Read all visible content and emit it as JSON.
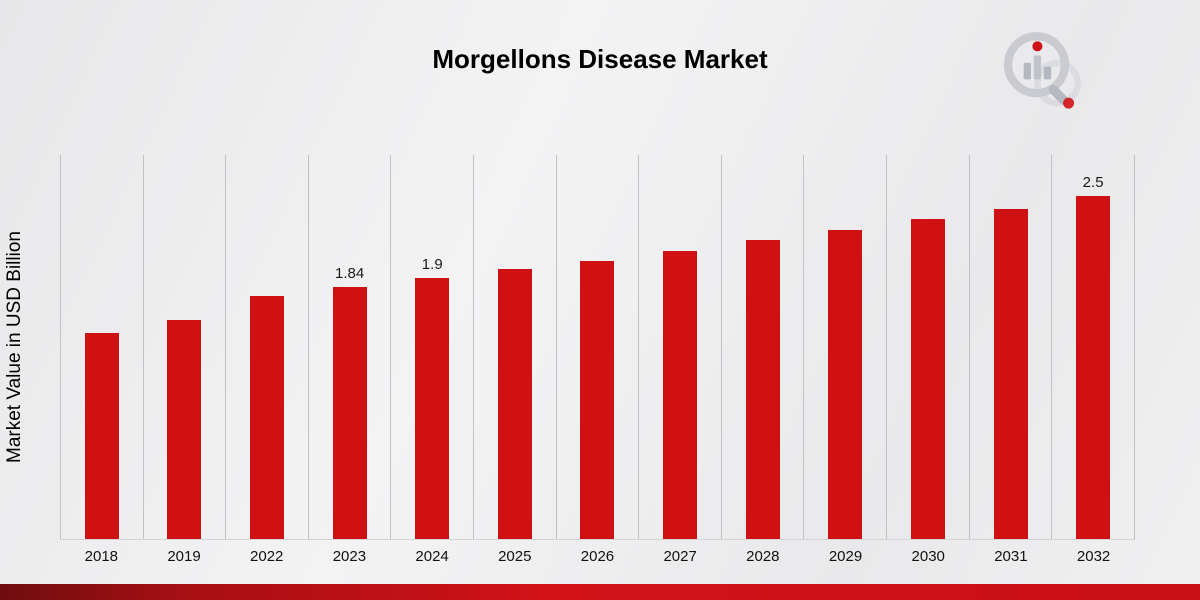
{
  "page": {
    "title": "Morgellons Disease Market"
  },
  "chart_data": {
    "type": "bar",
    "title": "Morgellons Disease Market",
    "xlabel": "",
    "ylabel": "Market Value in USD Billion",
    "ylim": [
      0,
      2.8
    ],
    "grid": "vertical-only",
    "legend": "none",
    "bar_color": "#cf1114",
    "categories": [
      "2018",
      "2019",
      "2022",
      "2023",
      "2024",
      "2025",
      "2026",
      "2027",
      "2028",
      "2029",
      "2030",
      "2031",
      "2032"
    ],
    "values": [
      1.5,
      1.6,
      1.77,
      1.84,
      1.9,
      1.97,
      2.03,
      2.1,
      2.18,
      2.25,
      2.33,
      2.41,
      2.5
    ],
    "data_labels": [
      "",
      "",
      "",
      "1.84",
      "1.9",
      "",
      "",
      "",
      "",
      "",
      "",
      "",
      "2.5"
    ]
  },
  "branding": {
    "logo_name": "magnifier-bar-chart-logo",
    "accent_color": "#d01217",
    "logo_gray": "#b4b8c0"
  }
}
